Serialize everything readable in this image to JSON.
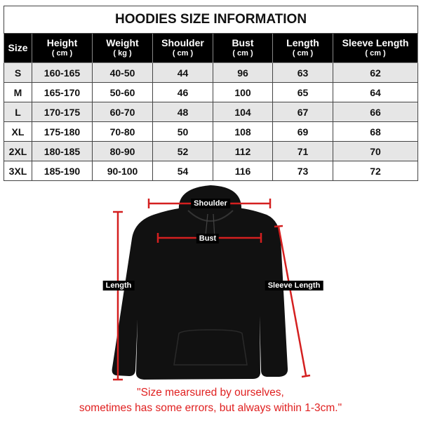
{
  "title": "HOODIES SIZE INFORMATION",
  "columns": [
    {
      "label": "Size",
      "unit": ""
    },
    {
      "label": "Height",
      "unit": "( cm )"
    },
    {
      "label": "Weight",
      "unit": "( kg )"
    },
    {
      "label": "Shoulder",
      "unit": "( cm )"
    },
    {
      "label": "Bust",
      "unit": "( cm )"
    },
    {
      "label": "Length",
      "unit": "( cm )"
    },
    {
      "label": "Sleeve Length",
      "unit": "( cm )"
    }
  ],
  "rows": [
    [
      "S",
      "160-165",
      "40-50",
      "44",
      "96",
      "63",
      "62"
    ],
    [
      "M",
      "165-170",
      "50-60",
      "46",
      "100",
      "65",
      "64"
    ],
    [
      "L",
      "170-175",
      "60-70",
      "48",
      "104",
      "67",
      "66"
    ],
    [
      "XL",
      "175-180",
      "70-80",
      "50",
      "108",
      "69",
      "68"
    ],
    [
      "2XL",
      "180-185",
      "80-90",
      "52",
      "112",
      "71",
      "70"
    ],
    [
      "3XL",
      "185-190",
      "90-100",
      "54",
      "116",
      "73",
      "72"
    ]
  ],
  "diagram": {
    "labels": {
      "shoulder": "Shoulder",
      "bust": "Bust",
      "length": "Length",
      "sleeve": "Sleeve Length"
    },
    "garment_color": "#111111",
    "measure_color": "#d42020"
  },
  "note": {
    "line1": "\"Size mearsured by ourselves,",
    "line2": "sometimes has some errors, but always within 1-3cm.\""
  }
}
